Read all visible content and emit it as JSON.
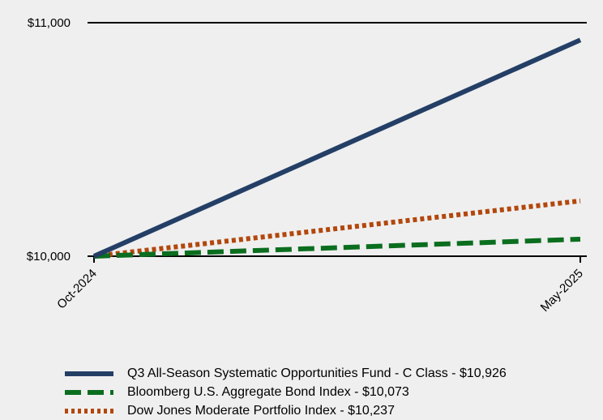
{
  "chart_data": {
    "type": "line",
    "x": [
      "Oct-2024",
      "May-2025"
    ],
    "y_ticks": [
      "$10,000",
      "$11,000"
    ],
    "ylim": [
      10000,
      11000
    ],
    "grid": false,
    "legend_position": "bottom",
    "series": [
      {
        "name": "Q3 All-Season Systematic Opportunities Fund - C Class - $10,926",
        "values": [
          10000,
          10926
        ],
        "color": "#243f66",
        "style": "solid"
      },
      {
        "name": "Bloomberg U.S. Aggregate Bond Index - $10,073",
        "values": [
          10000,
          10073
        ],
        "color": "#0b6e1f",
        "style": "dashed"
      },
      {
        "name": "Dow Jones Moderate Portfolio Index - $10,237",
        "values": [
          10000,
          10237
        ],
        "color": "#b3470c",
        "style": "dotted"
      }
    ]
  }
}
